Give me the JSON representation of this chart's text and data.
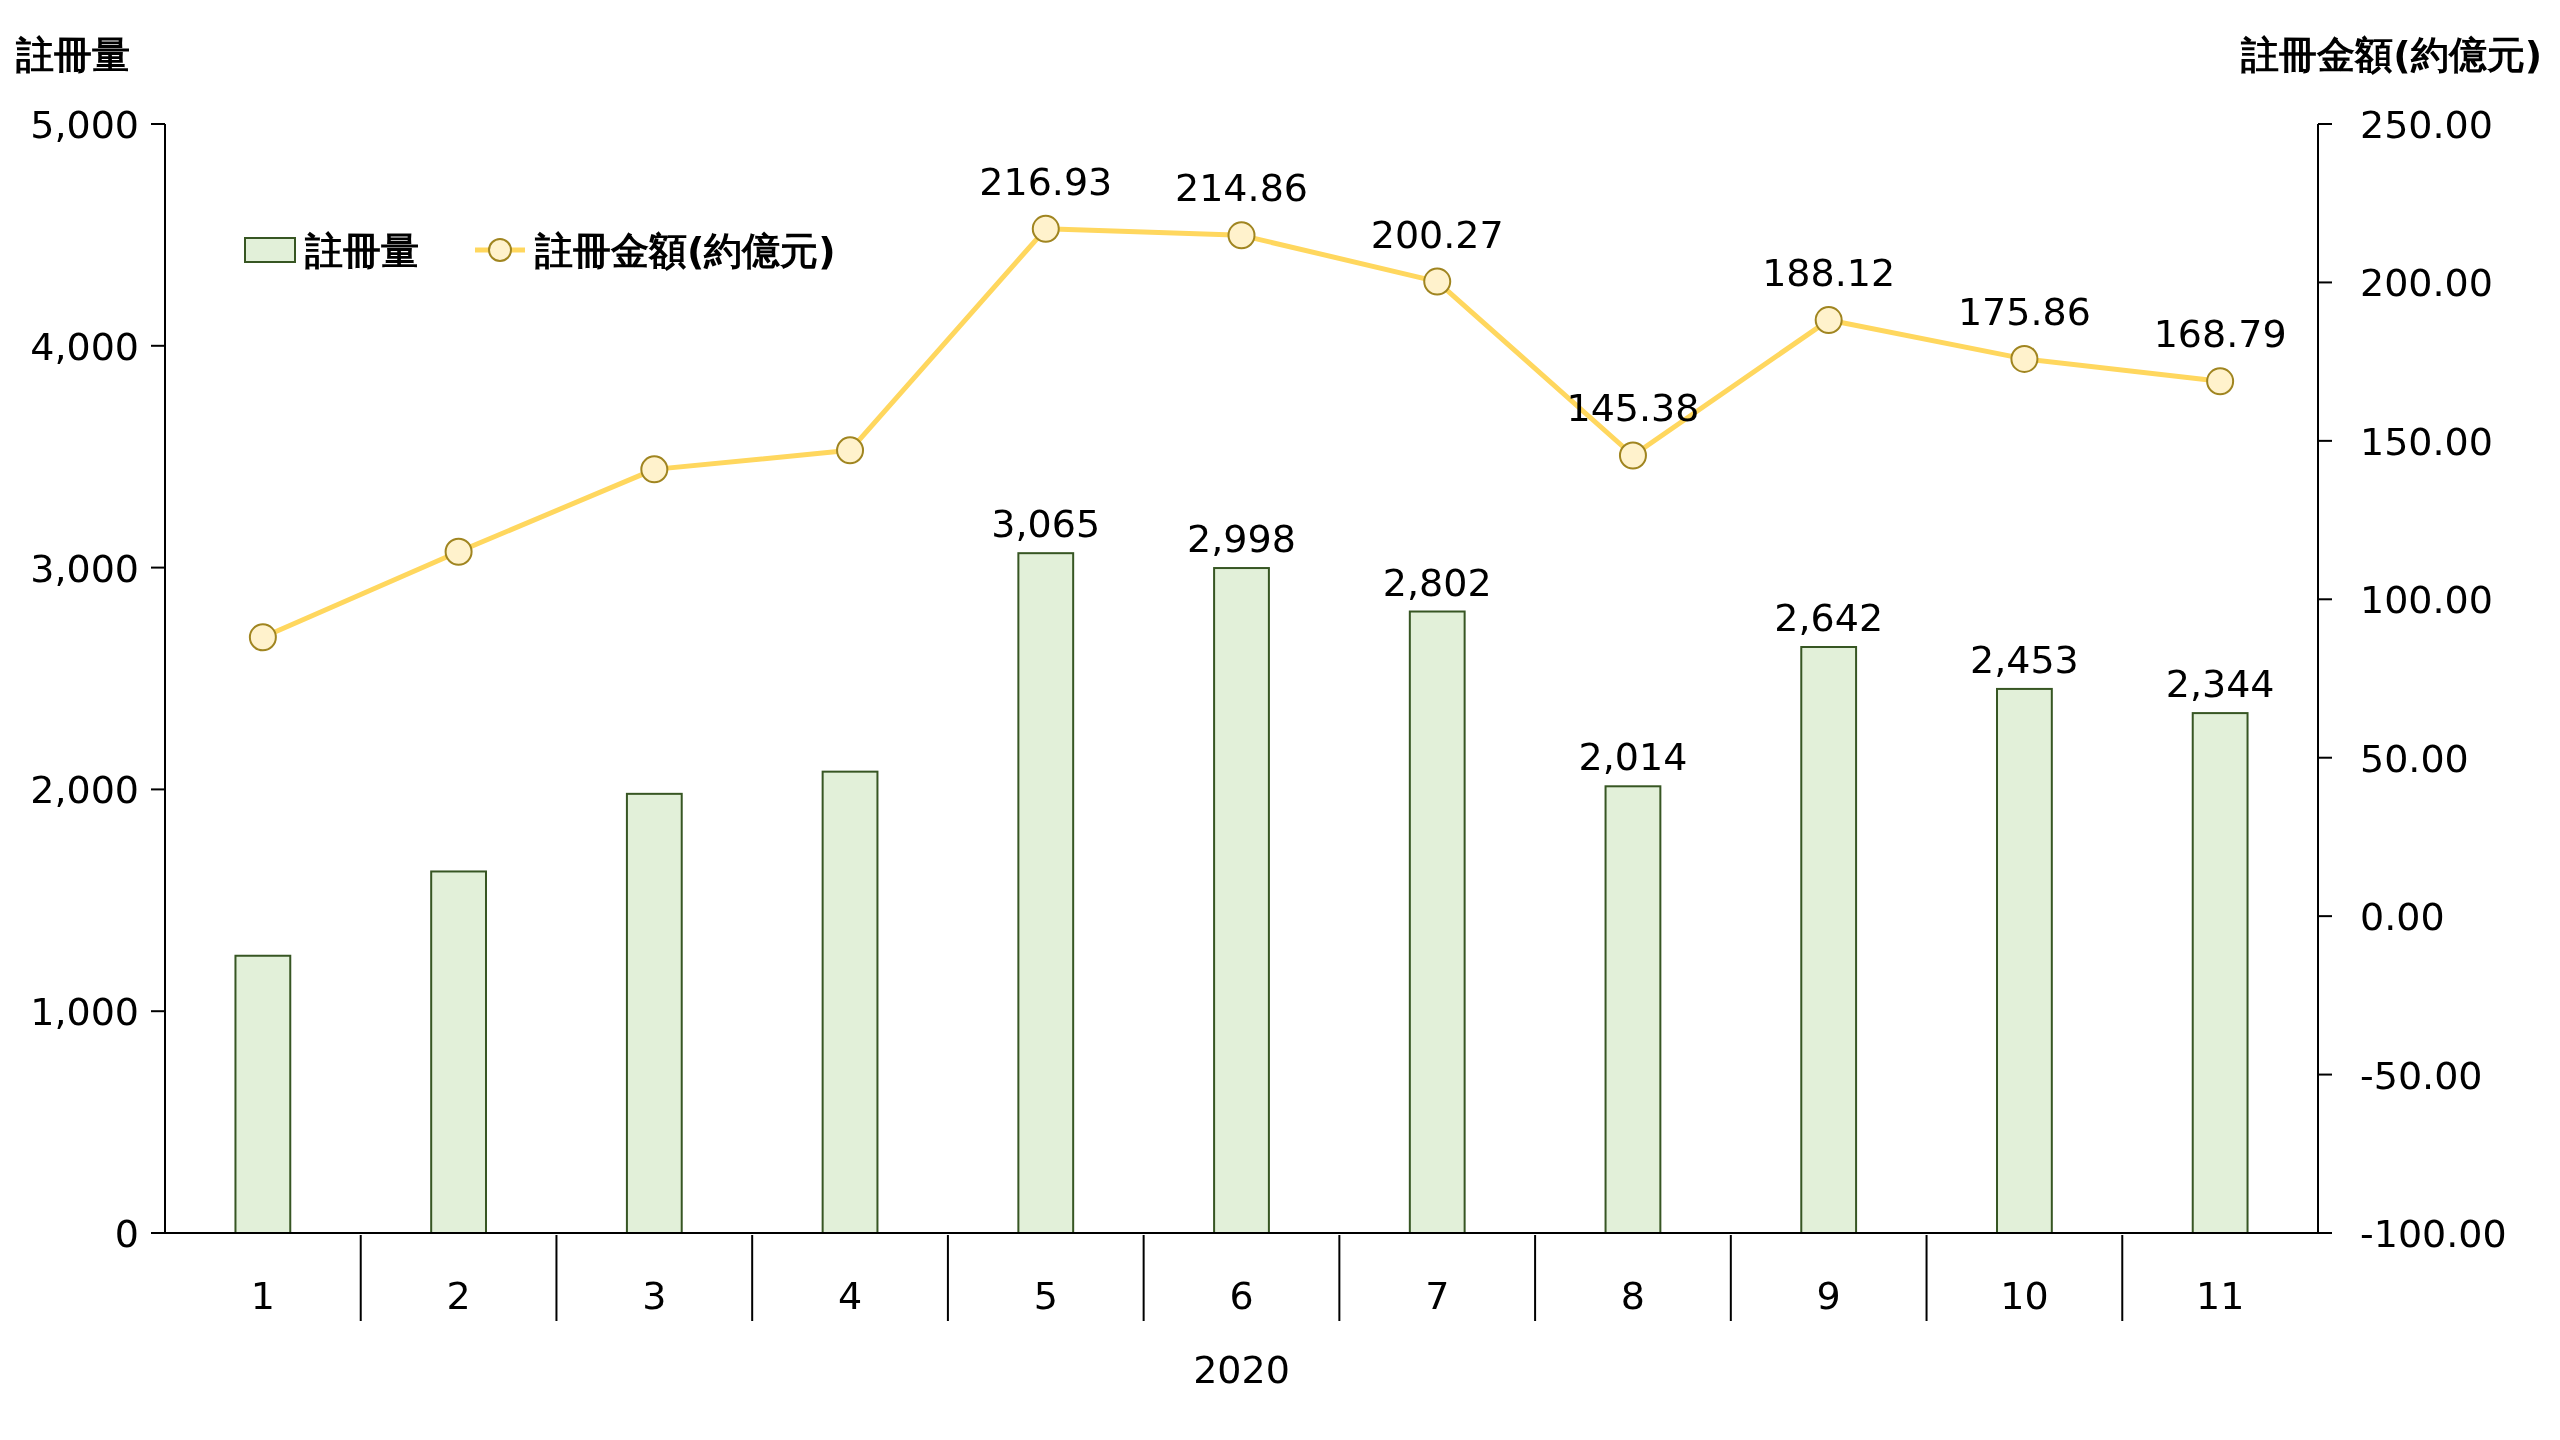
{
  "chart_data": {
    "type": "bar",
    "xlabel": "2020",
    "ylabel": "註冊量",
    "y2label": "註冊金額(約億元)",
    "categories": [
      "1",
      "2",
      "3",
      "4",
      "5",
      "6",
      "7",
      "8",
      "9",
      "10",
      "11"
    ],
    "series": [
      {
        "name": "註冊量",
        "color": "#e2f0d9",
        "values": [
          1250,
          1630,
          1980,
          2080,
          3065,
          2998,
          2802,
          2014,
          2642,
          2453,
          2344
        ],
        "value_labels": [
          null,
          null,
          null,
          null,
          "3,065",
          "2,998",
          "2,802",
          "2,014",
          "2,642",
          "2,453",
          "2,344"
        ]
      },
      {
        "name": "註冊金額(約億元)",
        "type": "line",
        "axis": "y2",
        "color": "#ffd75e",
        "marker": "circle",
        "values": [
          88,
          115,
          141,
          147,
          216.93,
          214.86,
          200.27,
          145.38,
          188.12,
          175.86,
          168.79
        ],
        "value_labels": [
          null,
          null,
          null,
          null,
          "216.93",
          "214.86",
          "200.27",
          "145.38",
          "188.12",
          "175.86",
          "168.79"
        ]
      }
    ],
    "ylim": [
      0,
      5000
    ],
    "yticks": [
      {
        "value": 0,
        "label": "0"
      },
      {
        "value": 1000,
        "label": "1,000"
      },
      {
        "value": 2000,
        "label": "2,000"
      },
      {
        "value": 3000,
        "label": "3,000"
      },
      {
        "value": 4000,
        "label": "4,000"
      },
      {
        "value": 5000,
        "label": "5,000"
      }
    ],
    "y2lim": [
      -100,
      250
    ],
    "y2ticks": [
      {
        "value": -100,
        "label": "-100.00"
      },
      {
        "value": -50,
        "label": "-50.00"
      },
      {
        "value": 0,
        "label": "0.00"
      },
      {
        "value": 50,
        "label": "50.00"
      },
      {
        "value": 100,
        "label": "100.00"
      },
      {
        "value": 150,
        "label": "150.00"
      },
      {
        "value": 200,
        "label": "200.00"
      },
      {
        "value": 250,
        "label": "250.00"
      }
    ],
    "grid": false,
    "legend": "top left"
  }
}
